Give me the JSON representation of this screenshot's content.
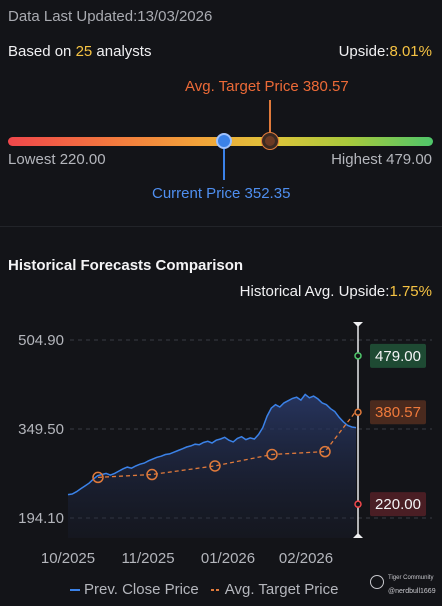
{
  "header": {
    "updated": "Data Last Updated:13/03/2026",
    "based_prefix": "Based on ",
    "analysts": "25",
    "based_suffix": " analysts",
    "upside_label": "Upside:",
    "upside_value": "8.01%"
  },
  "range": {
    "avg_target_label": "Avg. Target Price 380.57",
    "lowest_label": "Lowest 220.00",
    "highest_label": "Highest 479.00",
    "current_label": "Current Price 352.35",
    "lowest": 220.0,
    "highest": 479.0,
    "current": 352.35,
    "avg_target": 380.57
  },
  "historical": {
    "title": "Historical Forecasts Comparison",
    "upside_label": "Historical Avg. Upside:",
    "upside_value": "1.75%"
  },
  "chart_data": {
    "type": "line",
    "y_ticks": [
      "504.90",
      "349.50",
      "194.10"
    ],
    "x_ticks": [
      "10/2025",
      "11/2025",
      "01/2026",
      "02/2026"
    ],
    "ylim": [
      194.1,
      504.9
    ],
    "series": [
      {
        "name": "Prev. Close Price",
        "color": "#3b82e8",
        "values": [
          235,
          236,
          240,
          245,
          250,
          255,
          262,
          268,
          270,
          272,
          269,
          272,
          276,
          280,
          283,
          281,
          285,
          288,
          290,
          294,
          297,
          300,
          302,
          305,
          306,
          309,
          312,
          315,
          318,
          320,
          323,
          322,
          326,
          328,
          325,
          330,
          332,
          335,
          330,
          327,
          333,
          336,
          331,
          334,
          332,
          340,
          352,
          372,
          386,
          392,
          388,
          395,
          399,
          403,
          405,
          400,
          410,
          404,
          407,
          402,
          395,
          392,
          385,
          380,
          370,
          362,
          356,
          353,
          352
        ]
      },
      {
        "name": "Avg. Target Price",
        "color": "#e07a3b",
        "values": [
          265,
          270,
          285,
          305,
          310,
          330,
          380.57
        ]
      }
    ],
    "markers": [
      {
        "label": "479.00",
        "value": 479.0,
        "color": "#4fc66a"
      },
      {
        "label": "380.57",
        "value": 380.57,
        "color": "#e07a3b"
      },
      {
        "label": "220.00",
        "value": 220.0,
        "color": "#f0474b"
      }
    ]
  },
  "legend": {
    "close_label": "Prev. Close Price",
    "target_label": "Avg. Target Price"
  },
  "watermark": {
    "brand": "Tiger Community",
    "user": "@nerdbull1669"
  }
}
